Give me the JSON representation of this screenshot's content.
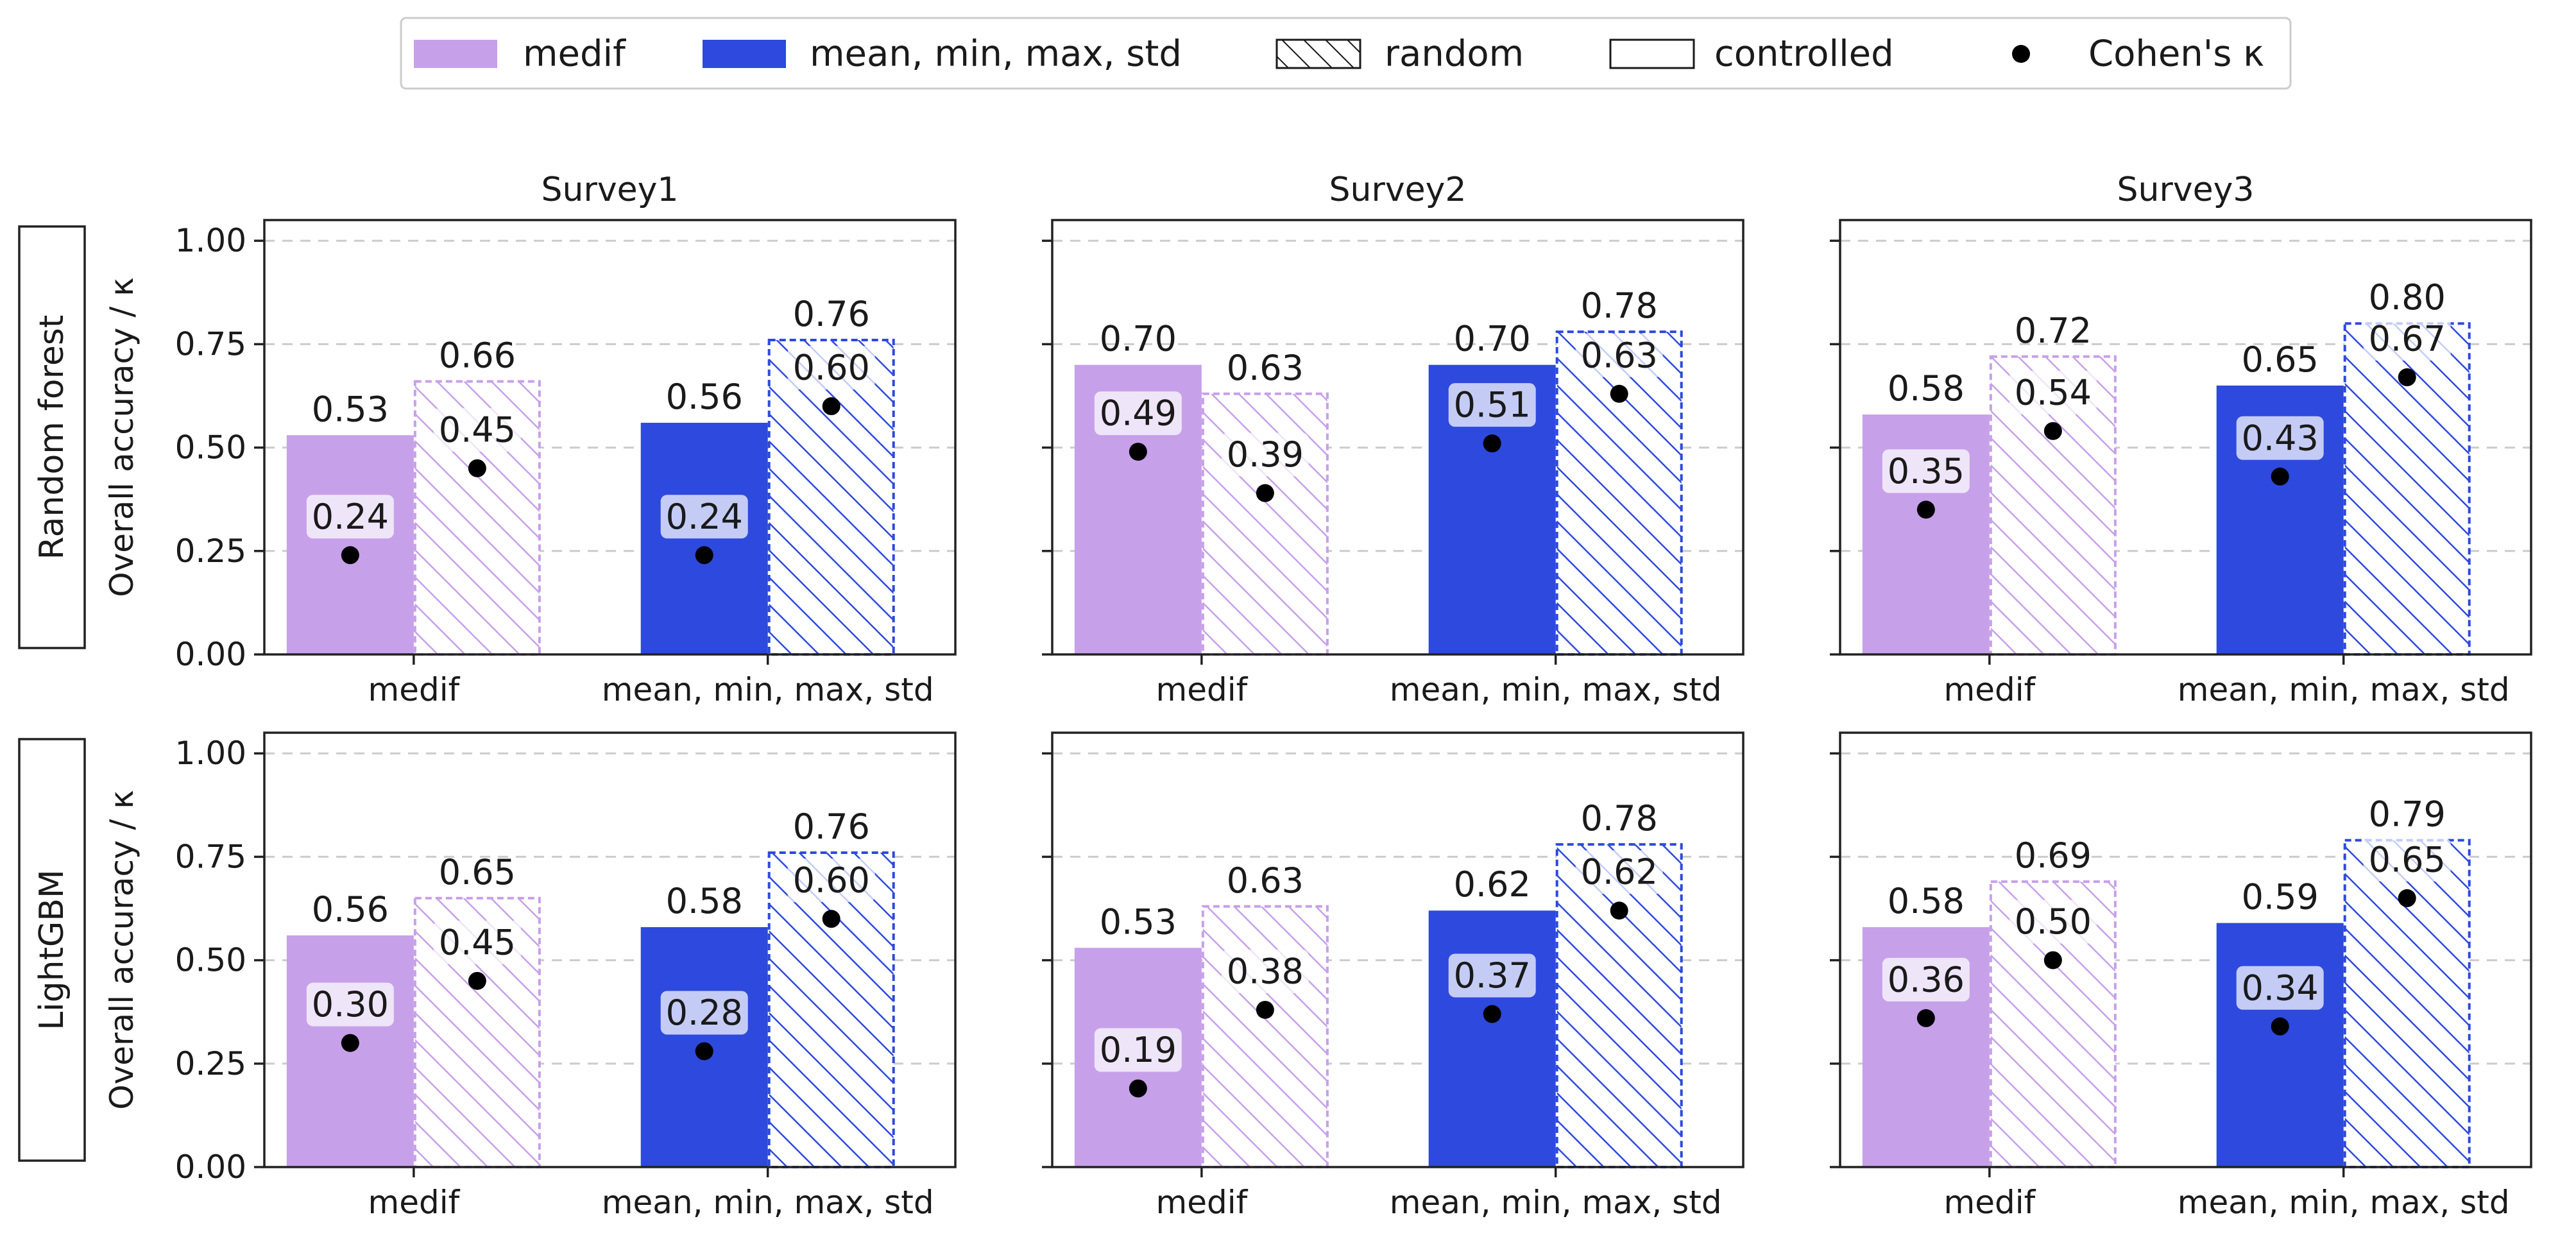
{
  "chart_data": {
    "type": "bar",
    "legend": {
      "placement": "top-center",
      "entries": [
        {
          "key": "medif",
          "label": "medif",
          "style": "solid",
          "color": "#c7a0ea"
        },
        {
          "key": "mmms",
          "label": "mean, min, max, std",
          "style": "solid",
          "color": "#2e49dd"
        },
        {
          "key": "random",
          "label": "random",
          "style": "hatch",
          "color": "#1a1a1a"
        },
        {
          "key": "controlled",
          "label": "controlled",
          "style": "empty",
          "color": "#1a1a1a"
        },
        {
          "key": "kappa",
          "label": "Cohen's κ",
          "style": "dot",
          "color": "#000000"
        }
      ]
    },
    "columns": [
      "Survey1",
      "Survey2",
      "Survey3"
    ],
    "rows": [
      {
        "label": "Random forest",
        "ylabel": "Overall accuracy / κ"
      },
      {
        "label": "LightGBM",
        "ylabel": "Overall accuracy / κ"
      }
    ],
    "categories": [
      "medif",
      "mean, min, max, std"
    ],
    "series": [
      {
        "name": "controlled",
        "style": "solid"
      },
      {
        "name": "random",
        "style": "hatch"
      }
    ],
    "ylim": [
      0,
      1.05
    ],
    "yticks": [
      "0.00",
      "0.25",
      "0.50",
      "0.75",
      "1.00"
    ],
    "ytick_values": [
      0,
      0.25,
      0.5,
      0.75,
      1.0
    ],
    "grid": "y-dashed",
    "colors": {
      "medif": "#c7a0ea",
      "mmms": "#2e49dd",
      "dot": "#000000",
      "grid": "#cccccc"
    },
    "panels": [
      {
        "row": 0,
        "col": 0,
        "acc": [
          [
            0.53,
            0.66
          ],
          [
            0.56,
            0.76
          ]
        ],
        "acc_labels": [
          [
            "0.53",
            "0.66"
          ],
          [
            "0.56",
            "0.76"
          ]
        ],
        "kappa": [
          [
            0.24,
            0.45
          ],
          [
            0.24,
            0.6
          ]
        ],
        "kappa_labels": [
          [
            "0.24",
            "0.45"
          ],
          [
            "0.24",
            "0.60"
          ]
        ]
      },
      {
        "row": 0,
        "col": 1,
        "acc": [
          [
            0.7,
            0.63
          ],
          [
            0.7,
            0.78
          ]
        ],
        "acc_labels": [
          [
            "0.70",
            "0.63"
          ],
          [
            "0.70",
            "0.78"
          ]
        ],
        "kappa": [
          [
            0.49,
            0.39
          ],
          [
            0.51,
            0.63
          ]
        ],
        "kappa_labels": [
          [
            "0.49",
            "0.39"
          ],
          [
            "0.51",
            "0.63"
          ]
        ]
      },
      {
        "row": 0,
        "col": 2,
        "acc": [
          [
            0.58,
            0.72
          ],
          [
            0.65,
            0.8
          ]
        ],
        "acc_labels": [
          [
            "0.58",
            "0.72"
          ],
          [
            "0.65",
            "0.80"
          ]
        ],
        "kappa": [
          [
            0.35,
            0.54
          ],
          [
            0.43,
            0.67
          ]
        ],
        "kappa_labels": [
          [
            "0.35",
            "0.54"
          ],
          [
            "0.43",
            "0.67"
          ]
        ]
      },
      {
        "row": 1,
        "col": 0,
        "acc": [
          [
            0.56,
            0.65
          ],
          [
            0.58,
            0.76
          ]
        ],
        "acc_labels": [
          [
            "0.56",
            "0.65"
          ],
          [
            "0.58",
            "0.76"
          ]
        ],
        "kappa": [
          [
            0.3,
            0.45
          ],
          [
            0.28,
            0.6
          ]
        ],
        "kappa_labels": [
          [
            "0.30",
            "0.45"
          ],
          [
            "0.28",
            "0.60"
          ]
        ]
      },
      {
        "row": 1,
        "col": 1,
        "acc": [
          [
            0.53,
            0.63
          ],
          [
            0.62,
            0.78
          ]
        ],
        "acc_labels": [
          [
            "0.53",
            "0.63"
          ],
          [
            "0.62",
            "0.78"
          ]
        ],
        "kappa": [
          [
            0.19,
            0.38
          ],
          [
            0.37,
            0.62
          ]
        ],
        "kappa_labels": [
          [
            "0.19",
            "0.38"
          ],
          [
            "0.37",
            "0.62"
          ]
        ]
      },
      {
        "row": 1,
        "col": 2,
        "acc": [
          [
            0.58,
            0.69
          ],
          [
            0.59,
            0.79
          ]
        ],
        "acc_labels": [
          [
            "0.58",
            "0.69"
          ],
          [
            "0.59",
            "0.79"
          ]
        ],
        "kappa": [
          [
            0.36,
            0.5
          ],
          [
            0.34,
            0.65
          ]
        ],
        "kappa_labels": [
          [
            "0.36",
            "0.50"
          ],
          [
            "0.34",
            "0.65"
          ]
        ]
      }
    ]
  }
}
